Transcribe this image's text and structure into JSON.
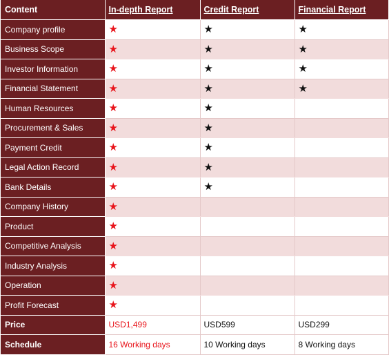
{
  "headers": [
    "Content",
    "In-depth Report",
    "Credit Report",
    "Financial Report"
  ],
  "rows": [
    {
      "label": "Company profile",
      "indepth": "★",
      "credit": "★",
      "financial": "★"
    },
    {
      "label": "Business Scope",
      "indepth": "★",
      "credit": "★",
      "financial": "★"
    },
    {
      "label": "Investor Information",
      "indepth": "★",
      "credit": "★",
      "financial": "★"
    },
    {
      "label": "Financial Statement",
      "indepth": "★",
      "credit": "★",
      "financial": "★"
    },
    {
      "label": "Human Resources",
      "indepth": "★",
      "credit": "★",
      "financial": ""
    },
    {
      "label": "Procurement & Sales",
      "indepth": "★",
      "credit": "★",
      "financial": ""
    },
    {
      "label": "Payment Credit",
      "indepth": "★",
      "credit": "★",
      "financial": ""
    },
    {
      "label": "Legal Action Record",
      "indepth": "★",
      "credit": "★",
      "financial": ""
    },
    {
      "label": "Bank Details",
      "indepth": "★",
      "credit": "★",
      "financial": ""
    },
    {
      "label": "Company History",
      "indepth": "★",
      "credit": "",
      "financial": ""
    },
    {
      "label": "Product",
      "indepth": "★",
      "credit": "",
      "financial": ""
    },
    {
      "label": "Competitive Analysis",
      "indepth": "★",
      "credit": "",
      "financial": ""
    },
    {
      "label": "Industry Analysis",
      "indepth": "★",
      "credit": "",
      "financial": ""
    },
    {
      "label": "Operation",
      "indepth": "★",
      "credit": "",
      "financial": ""
    },
    {
      "label": "Profit Forecast",
      "indepth": "★",
      "credit": "",
      "financial": ""
    }
  ],
  "price": {
    "label": "Price",
    "indepth": "USD1,499",
    "credit": "USD599",
    "financial": "USD299"
  },
  "schedule": {
    "label": "Schedule",
    "indepth": "16 Working days",
    "credit": "10 Working days",
    "financial": "8 Working days"
  },
  "colors": {
    "header_bg": "#6b1f22",
    "stripe": "#f2dcdc",
    "accent_red": "#e8141b"
  },
  "icons": {
    "included": "star-icon"
  }
}
